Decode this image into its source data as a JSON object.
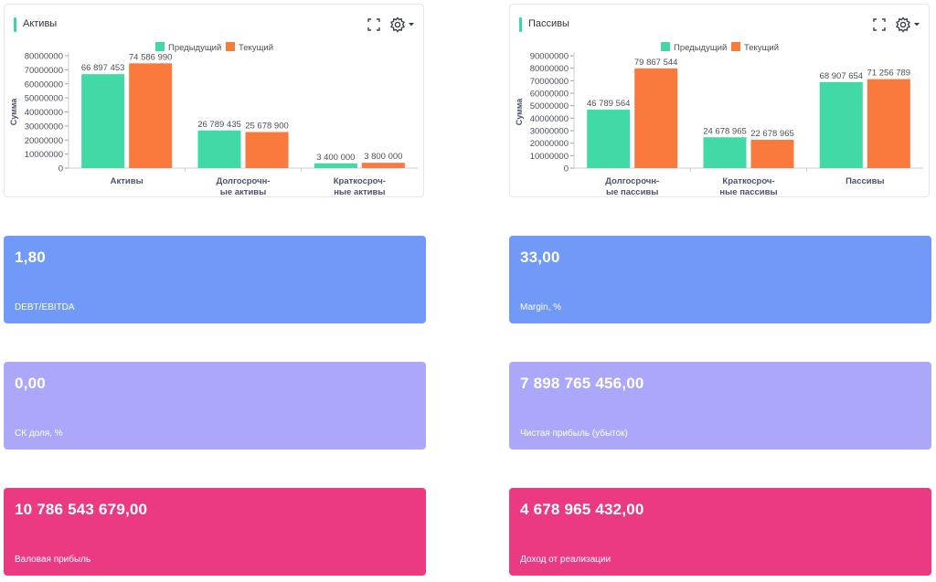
{
  "colors": {
    "previous": "#41d9a6",
    "current": "#fa7a3e",
    "card_blue": "#7199f7",
    "card_lavender": "#aba8f9",
    "card_pink": "#ec3a82",
    "accent": "#3ed6a0"
  },
  "icons": {
    "expand": "expand-icon",
    "settings": "gear-icon",
    "dropdown": "caret-down-icon"
  },
  "panels": [
    {
      "title": "Активы",
      "chart_data": {
        "type": "bar",
        "ylabel": "Сумма",
        "ylim": [
          0,
          80000000
        ],
        "yticks": [
          "0",
          "10000000",
          "20000000",
          "30000000",
          "40000000",
          "50000000",
          "60000000",
          "70000000",
          "80000000"
        ],
        "categories": [
          [
            "Активы"
          ],
          [
            "Долгосрочн-",
            "ые активы"
          ],
          [
            "Краткосроч-",
            "ные активы"
          ]
        ],
        "legend_position": "top-center",
        "series": [
          {
            "name": "Предыдущий",
            "values": [
              66897453,
              26789435,
              3400000
            ],
            "labels": [
              "66 897 453",
              "26 789 435",
              "3 400 000"
            ]
          },
          {
            "name": "Текущий",
            "values": [
              74586990,
              25678900,
              3800000
            ],
            "labels": [
              "74 586 990",
              "25 678 900",
              "3 800 000"
            ]
          }
        ]
      }
    },
    {
      "title": "Пассивы",
      "chart_data": {
        "type": "bar",
        "ylabel": "Сумма",
        "ylim": [
          0,
          90000000
        ],
        "yticks": [
          "0",
          "10000000",
          "20000000",
          "30000000",
          "40000000",
          "50000000",
          "60000000",
          "70000000",
          "80000000",
          "90000000"
        ],
        "categories": [
          [
            "Долгосрочн-",
            "ые пассивы"
          ],
          [
            "Краткосроч-",
            "ные пассивы"
          ],
          [
            "Пассивы"
          ]
        ],
        "legend_position": "top-center",
        "series": [
          {
            "name": "Предыдущий",
            "values": [
              46789564,
              24678965,
              68907654
            ],
            "labels": [
              "46 789 564",
              "24 678 965",
              "68 907 654"
            ]
          },
          {
            "name": "Текущий",
            "values": [
              79867544,
              22678965,
              71256789
            ],
            "labels": [
              "79 867 544",
              "22 678 965",
              "71 256 789"
            ]
          }
        ]
      }
    }
  ],
  "kpis": [
    {
      "value": "1,80",
      "label": "DEBT/EBITDA",
      "color": "#7199f7"
    },
    {
      "value": "33,00",
      "label": "Margin, %",
      "color": "#7199f7"
    },
    {
      "value": "0,00",
      "label": "СК доля, %",
      "color": "#aba8f9"
    },
    {
      "value": "7 898 765 456,00",
      "label": "Чистая прибыль (убыток)",
      "color": "#aba8f9"
    },
    {
      "value": "10 786 543 679,00",
      "label": "Валовая прибыль",
      "color": "#ec3a82"
    },
    {
      "value": "4 678 965 432,00",
      "label": "Доход от реализации",
      "color": "#ec3a82"
    }
  ]
}
